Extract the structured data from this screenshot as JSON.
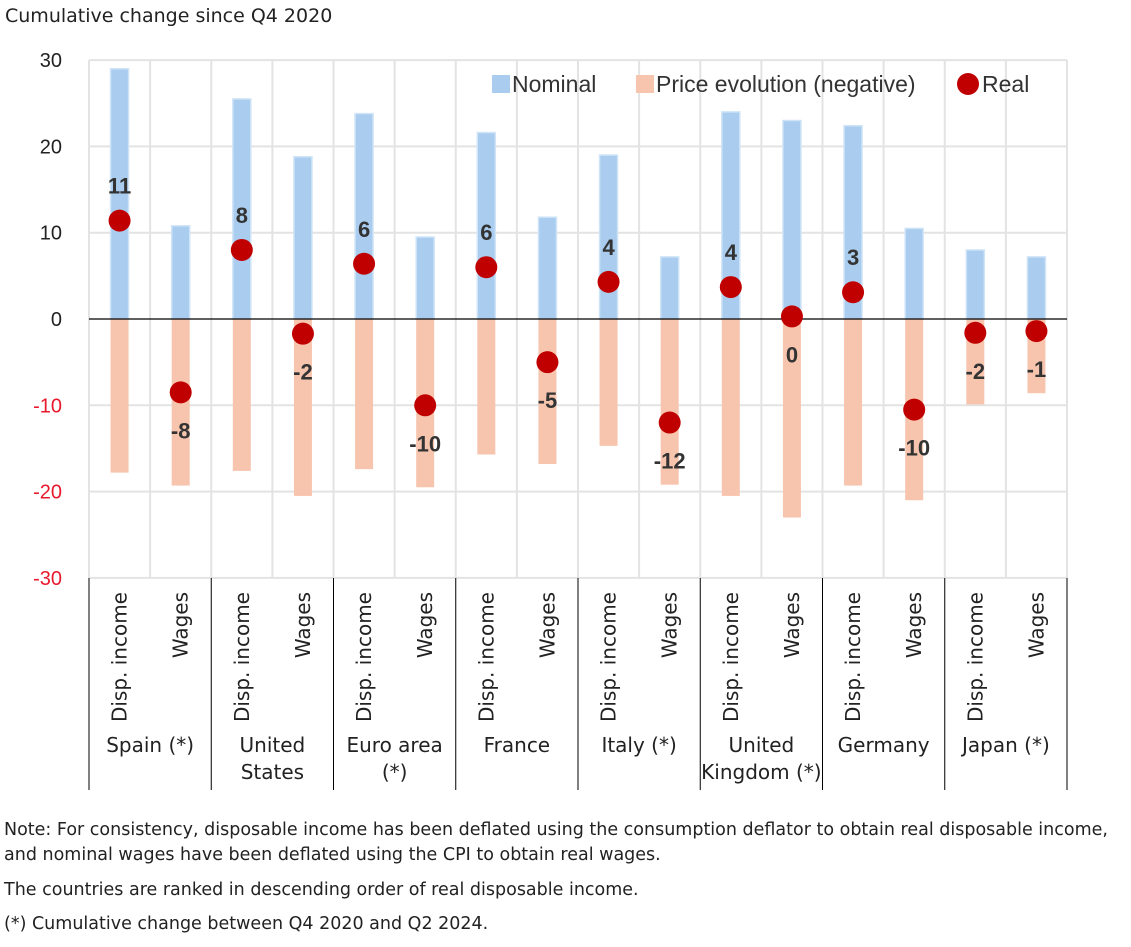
{
  "chart_data": {
    "type": "bar",
    "title": "Cumulative change since Q4 2020",
    "ylim": [
      -30,
      30
    ],
    "yticks": [
      30,
      20,
      10,
      0,
      -10,
      -20,
      -30
    ],
    "sub_categories": [
      "Disp. income",
      "Wages"
    ],
    "countries": [
      "Spain (*)",
      "United States",
      "Euro area (*)",
      "France",
      "Italy (*)",
      "United Kingdom (*)",
      "Germany",
      "Japan (*)"
    ],
    "country_lines": [
      [
        "Spain (*)"
      ],
      [
        "United",
        "States"
      ],
      [
        "Euro area",
        "(*)"
      ],
      [
        "France"
      ],
      [
        "Italy (*)"
      ],
      [
        "United",
        "Kingdom (*)"
      ],
      [
        "Germany"
      ],
      [
        "Japan (*)"
      ]
    ],
    "series": [
      {
        "name": "Nominal",
        "color": "#a9ccef",
        "values": [
          29,
          10.8,
          25.5,
          18.8,
          23.8,
          9.5,
          21.6,
          11.8,
          19,
          7.2,
          24,
          23,
          22.4,
          10.5,
          8,
          7.2
        ]
      },
      {
        "name": "Price evolution (negative)",
        "color": "#f7c4ad",
        "values": [
          -17.8,
          -19.3,
          -17.6,
          -20.5,
          -17.4,
          -19.5,
          -15.7,
          -16.8,
          -14.7,
          -19.2,
          -20.5,
          -23,
          -19.3,
          -21,
          -9.9,
          -8.6
        ]
      },
      {
        "name": "Real",
        "color": "#c00000",
        "values": [
          11.4,
          -8.5,
          8,
          -1.7,
          6.4,
          -10,
          6,
          -5,
          4.3,
          -12,
          3.7,
          0.3,
          3.1,
          -10.5,
          -1.6,
          -1.4
        ]
      }
    ],
    "data_labels": [
      "11",
      "-8",
      "8",
      "-2",
      "6",
      "-10",
      "6",
      "-5",
      "4",
      "-12",
      "4",
      "0",
      "3",
      "-10",
      "-2",
      "-1"
    ]
  },
  "notes": [
    "Note: For consistency, disposable income has been deflated using the consumption deflator to obtain real disposable income, and nominal wages have been deflated using the CPI to obtain real wages.",
    "The countries are ranked in descending order of real disposable income.",
    "(*) Cumulative change between Q4 2020 and Q2 2024."
  ]
}
